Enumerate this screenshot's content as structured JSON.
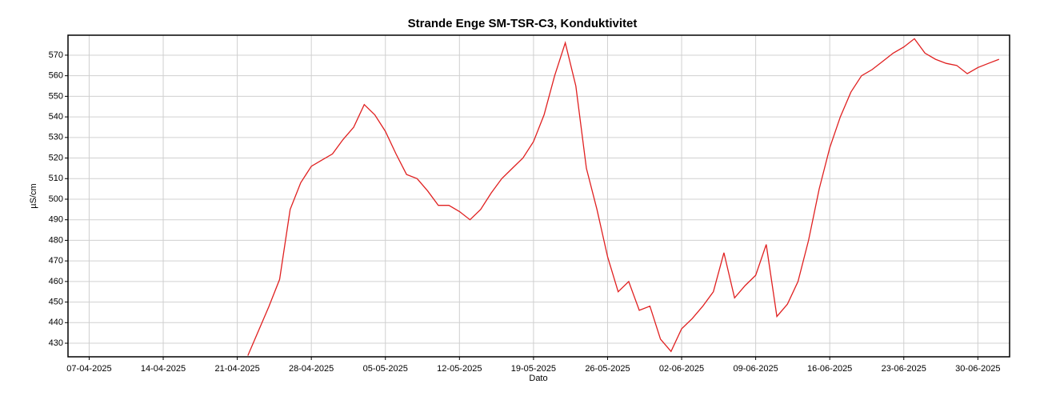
{
  "chart_data": {
    "type": "line",
    "title": "Strande Enge SM-TSR-C3, Konduktivitet",
    "x_label": "Dato",
    "y_label": "µS/cm",
    "x": [
      "22-04-2025",
      "24-04-2025",
      "25-04-2025",
      "26-04-2025",
      "27-04-2025",
      "28-04-2025",
      "29-04-2025",
      "30-04-2025",
      "01-05-2025",
      "02-05-2025",
      "03-05-2025",
      "04-05-2025",
      "05-05-2025",
      "06-05-2025",
      "07-05-2025",
      "08-05-2025",
      "09-05-2025",
      "10-05-2025",
      "11-05-2025",
      "12-05-2025",
      "13-05-2025",
      "14-05-2025",
      "15-05-2025",
      "16-05-2025",
      "17-05-2025",
      "18-05-2025",
      "19-05-2025",
      "20-05-2025",
      "21-05-2025",
      "22-05-2025",
      "23-05-2025",
      "24-05-2025",
      "25-05-2025",
      "26-05-2025",
      "27-05-2025",
      "28-05-2025",
      "29-05-2025",
      "30-05-2025",
      "31-05-2025",
      "01-06-2025",
      "02-06-2025",
      "03-06-2025",
      "04-06-2025",
      "05-06-2025",
      "06-06-2025",
      "07-06-2025",
      "08-06-2025",
      "09-06-2025",
      "10-06-2025",
      "11-06-2025",
      "12-06-2025",
      "13-06-2025",
      "14-06-2025",
      "15-06-2025",
      "16-06-2025",
      "17-06-2025",
      "18-06-2025",
      "19-06-2025",
      "20-06-2025",
      "21-06-2025",
      "22-06-2025",
      "23-06-2025",
      "24-06-2025",
      "25-06-2025",
      "26-06-2025",
      "27-06-2025",
      "28-06-2025",
      "29-06-2025",
      "30-06-2025",
      "01-07-2025",
      "02-07-2025"
    ],
    "series": [
      {
        "name": "Konduktivitet",
        "color": "#e02020",
        "values": [
          424,
          448,
          461,
          495,
          508,
          516,
          519,
          522,
          529,
          535,
          546,
          541,
          533,
          522,
          512,
          510,
          504,
          497,
          497,
          494,
          490,
          495,
          503,
          510,
          515,
          520,
          528,
          541,
          560,
          576,
          555,
          515,
          495,
          472,
          455,
          460,
          446,
          448,
          432,
          426,
          437,
          442,
          448,
          455,
          474,
          452,
          458,
          463,
          478,
          443,
          449,
          460,
          480,
          505,
          525,
          540,
          552,
          560,
          563,
          567,
          571,
          574,
          578,
          571,
          568,
          566,
          565,
          561,
          564,
          566,
          568
        ]
      }
    ],
    "xlim": [
      "05-04-2025",
      "03-07-2025"
    ],
    "xticks": [
      "07-04-2025",
      "14-04-2025",
      "21-04-2025",
      "28-04-2025",
      "05-05-2025",
      "12-05-2025",
      "19-05-2025",
      "26-05-2025",
      "02-06-2025",
      "09-06-2025",
      "16-06-2025",
      "23-06-2025",
      "30-06-2025"
    ],
    "ylim": [
      423.4,
      579.7
    ],
    "yticks": [
      430,
      440,
      450,
      460,
      470,
      480,
      490,
      500,
      510,
      520,
      530,
      540,
      550,
      560,
      570
    ],
    "grid": true
  }
}
